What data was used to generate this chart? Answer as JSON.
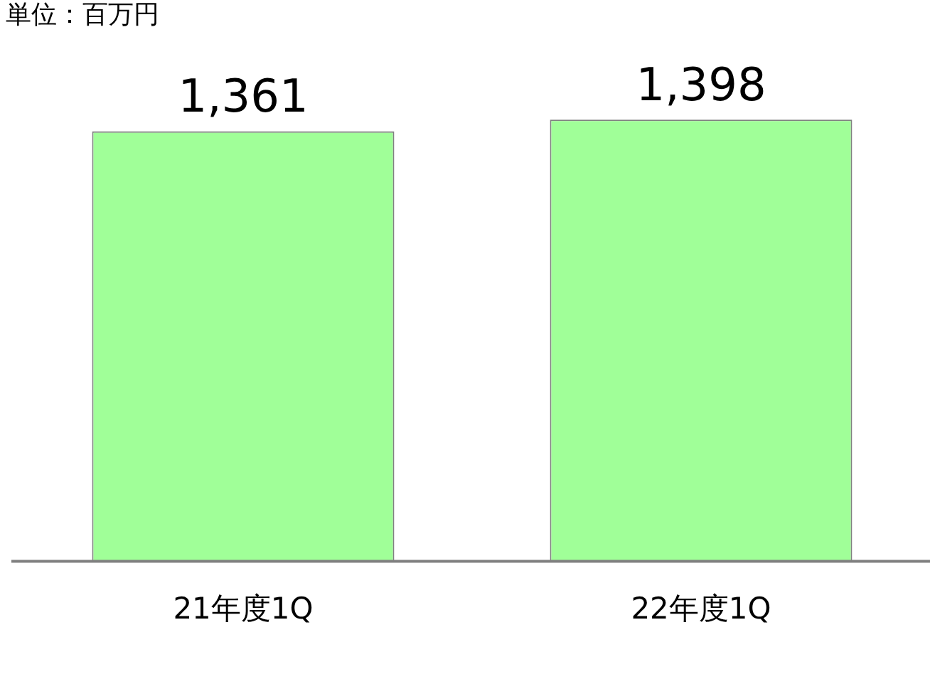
{
  "chart_data": {
    "type": "bar",
    "categories": [
      "21年度1Q",
      "22年度1Q"
    ],
    "values": [
      1361,
      1398
    ],
    "color": "#a0ff98",
    "data_labels": true,
    "value_labels": [
      "1,361",
      "1,398"
    ],
    "grid": false,
    "legend": false,
    "annotations": [
      "単位：百万円"
    ]
  }
}
